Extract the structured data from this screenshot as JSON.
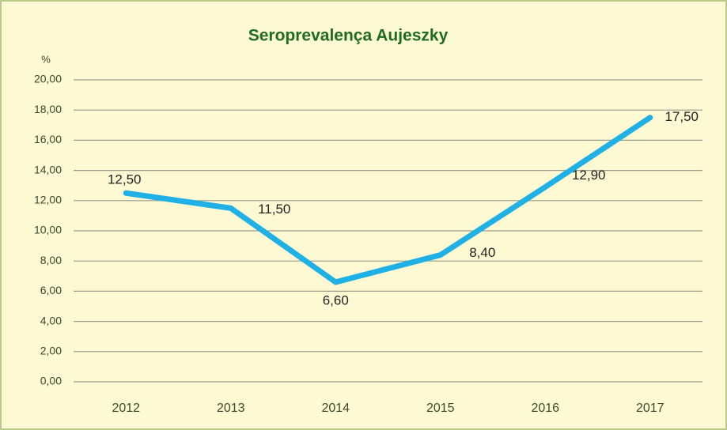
{
  "chart_data": {
    "type": "line",
    "title": "Seroprevalença Aujeszky",
    "y_label": "%",
    "categories": [
      "2012",
      "2013",
      "2014",
      "2015",
      "2016",
      "2017"
    ],
    "values": [
      12.5,
      11.5,
      6.6,
      8.4,
      12.9,
      17.5
    ],
    "value_labels": [
      "12,50",
      "11,50",
      "6,60",
      "8,40",
      "12,90",
      "17,50"
    ],
    "color": "#1fb1e6",
    "ylim": [
      0,
      20
    ],
    "yticks": [
      {
        "value": 0,
        "label": "0,00"
      },
      {
        "value": 2,
        "label": "2,00"
      },
      {
        "value": 4,
        "label": "4,00"
      },
      {
        "value": 6,
        "label": "6,00"
      },
      {
        "value": 8,
        "label": "8,00"
      },
      {
        "value": 10,
        "label": "10,00"
      },
      {
        "value": 12,
        "label": "12,00"
      },
      {
        "value": 14,
        "label": "14,00"
      },
      {
        "value": 16,
        "label": "16,00"
      },
      {
        "value": 18,
        "label": "18,00"
      },
      {
        "value": 20,
        "label": "20,00"
      }
    ],
    "grid": true
  }
}
